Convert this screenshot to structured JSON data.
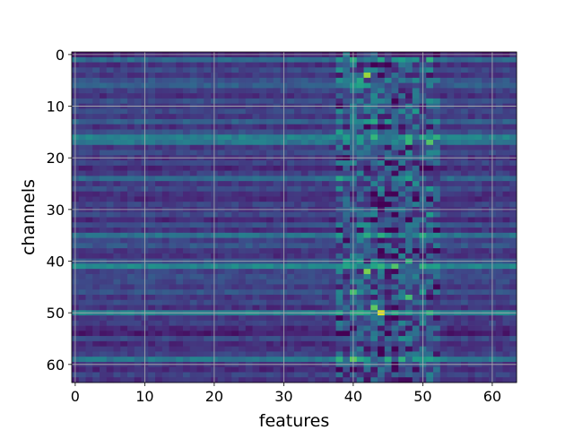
{
  "chart_data": {
    "type": "heatmap",
    "title": "",
    "xlabel": "features",
    "ylabel": "channels",
    "n_rows": 64,
    "n_cols": 64,
    "xlim": [
      -0.5,
      63.5
    ],
    "ylim": [
      63.5,
      -0.5
    ],
    "x_ticks": [
      "0",
      "10",
      "20",
      "30",
      "40",
      "50",
      "60"
    ],
    "y_ticks": [
      "0",
      "10",
      "20",
      "30",
      "40",
      "50",
      "60"
    ],
    "grid": true,
    "colormap": "viridis",
    "value_range": [
      0,
      1
    ],
    "row_profile": [
      0.1,
      0.34,
      0.14,
      0.22,
      0.16,
      0.26,
      0.3,
      0.2,
      0.14,
      0.24,
      0.18,
      0.22,
      0.16,
      0.3,
      0.14,
      0.24,
      0.44,
      0.4,
      0.16,
      0.22,
      0.14,
      0.2,
      0.12,
      0.18,
      0.34,
      0.16,
      0.22,
      0.14,
      0.12,
      0.2,
      0.16,
      0.22,
      0.12,
      0.24,
      0.14,
      0.38,
      0.2,
      0.26,
      0.16,
      0.14,
      0.26,
      0.46,
      0.2,
      0.24,
      0.22,
      0.18,
      0.26,
      0.16,
      0.22,
      0.14,
      0.44,
      0.16,
      0.18,
      0.12,
      0.08,
      0.22,
      0.12,
      0.16,
      0.2,
      0.4,
      0.16,
      0.12,
      0.2,
      0.14
    ],
    "hot_band_features": [
      38,
      52
    ],
    "hot_cells": [
      {
        "feature": 42,
        "channel": 4,
        "value": 0.85
      },
      {
        "feature": 42,
        "channel": 42,
        "value": 0.8
      },
      {
        "feature": 40,
        "channel": 46,
        "value": 0.7
      },
      {
        "feature": 48,
        "channel": 47,
        "value": 0.7
      },
      {
        "feature": 44,
        "channel": 50,
        "value": 0.95
      },
      {
        "feature": 43,
        "channel": 49,
        "value": 0.75
      },
      {
        "feature": 40,
        "channel": 59,
        "value": 0.75
      },
      {
        "feature": 48,
        "channel": 40,
        "value": 0.65
      }
    ]
  }
}
